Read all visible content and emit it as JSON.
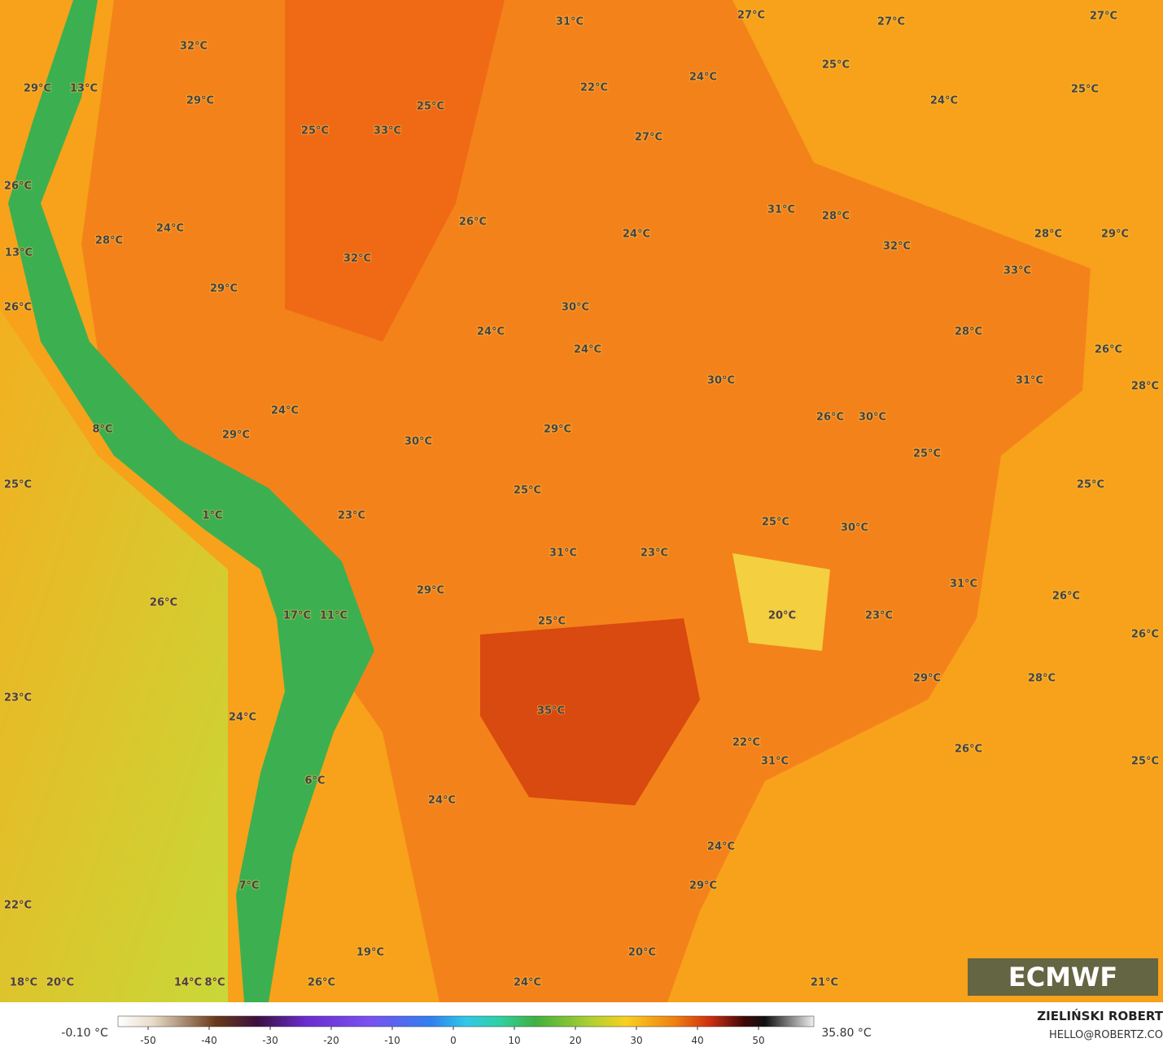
{
  "map": {
    "labels": [
      "31°C",
      "27°C",
      "27°C",
      "27°C",
      "32°C",
      "24°C",
      "25°C",
      "22°C",
      "25°C",
      "29°C",
      "13°C",
      "29°C",
      "25°C",
      "24°C",
      "25°C",
      "33°C",
      "27°C",
      "26°C",
      "31°C",
      "28°C",
      "24°C",
      "26°C",
      "24°C",
      "28°C",
      "29°C",
      "28°C",
      "32°C",
      "13°C",
      "32°C",
      "33°C",
      "29°C",
      "30°C",
      "26°C",
      "24°C",
      "28°C",
      "24°C",
      "26°C",
      "30°C",
      "31°C",
      "28°C",
      "24°C",
      "26°C",
      "30°C",
      "8°C",
      "29°C",
      "29°C",
      "30°C",
      "25°C",
      "25°C",
      "25°C",
      "25°C",
      "1°C",
      "23°C",
      "25°C",
      "30°C",
      "31°C",
      "23°C",
      "31°C",
      "29°C",
      "26°C",
      "26°C",
      "17°C",
      "11°C",
      "20°C",
      "23°C",
      "25°C",
      "26°C",
      "29°C",
      "28°C",
      "23°C",
      "35°C",
      "24°C",
      "22°C",
      "26°C",
      "31°C",
      "25°C",
      "6°C",
      "24°C",
      "24°C",
      "29°C",
      "7°C",
      "22°C",
      "19°C",
      "20°C",
      "18°C",
      "20°C",
      "14°C",
      "8°C",
      "26°C",
      "24°C",
      "21°C"
    ]
  },
  "logo": "ECMWF",
  "colorbar": {
    "min_label": "-0.10 °C",
    "max_label": "35.80 °C",
    "ticks": [
      -50,
      -40,
      -30,
      -20,
      -10,
      0,
      10,
      20,
      30,
      40,
      50
    ]
  },
  "author": {
    "name": "ZIELIŃSKI ROBERT",
    "email": "HELLO@ROBERTZ.CO"
  }
}
